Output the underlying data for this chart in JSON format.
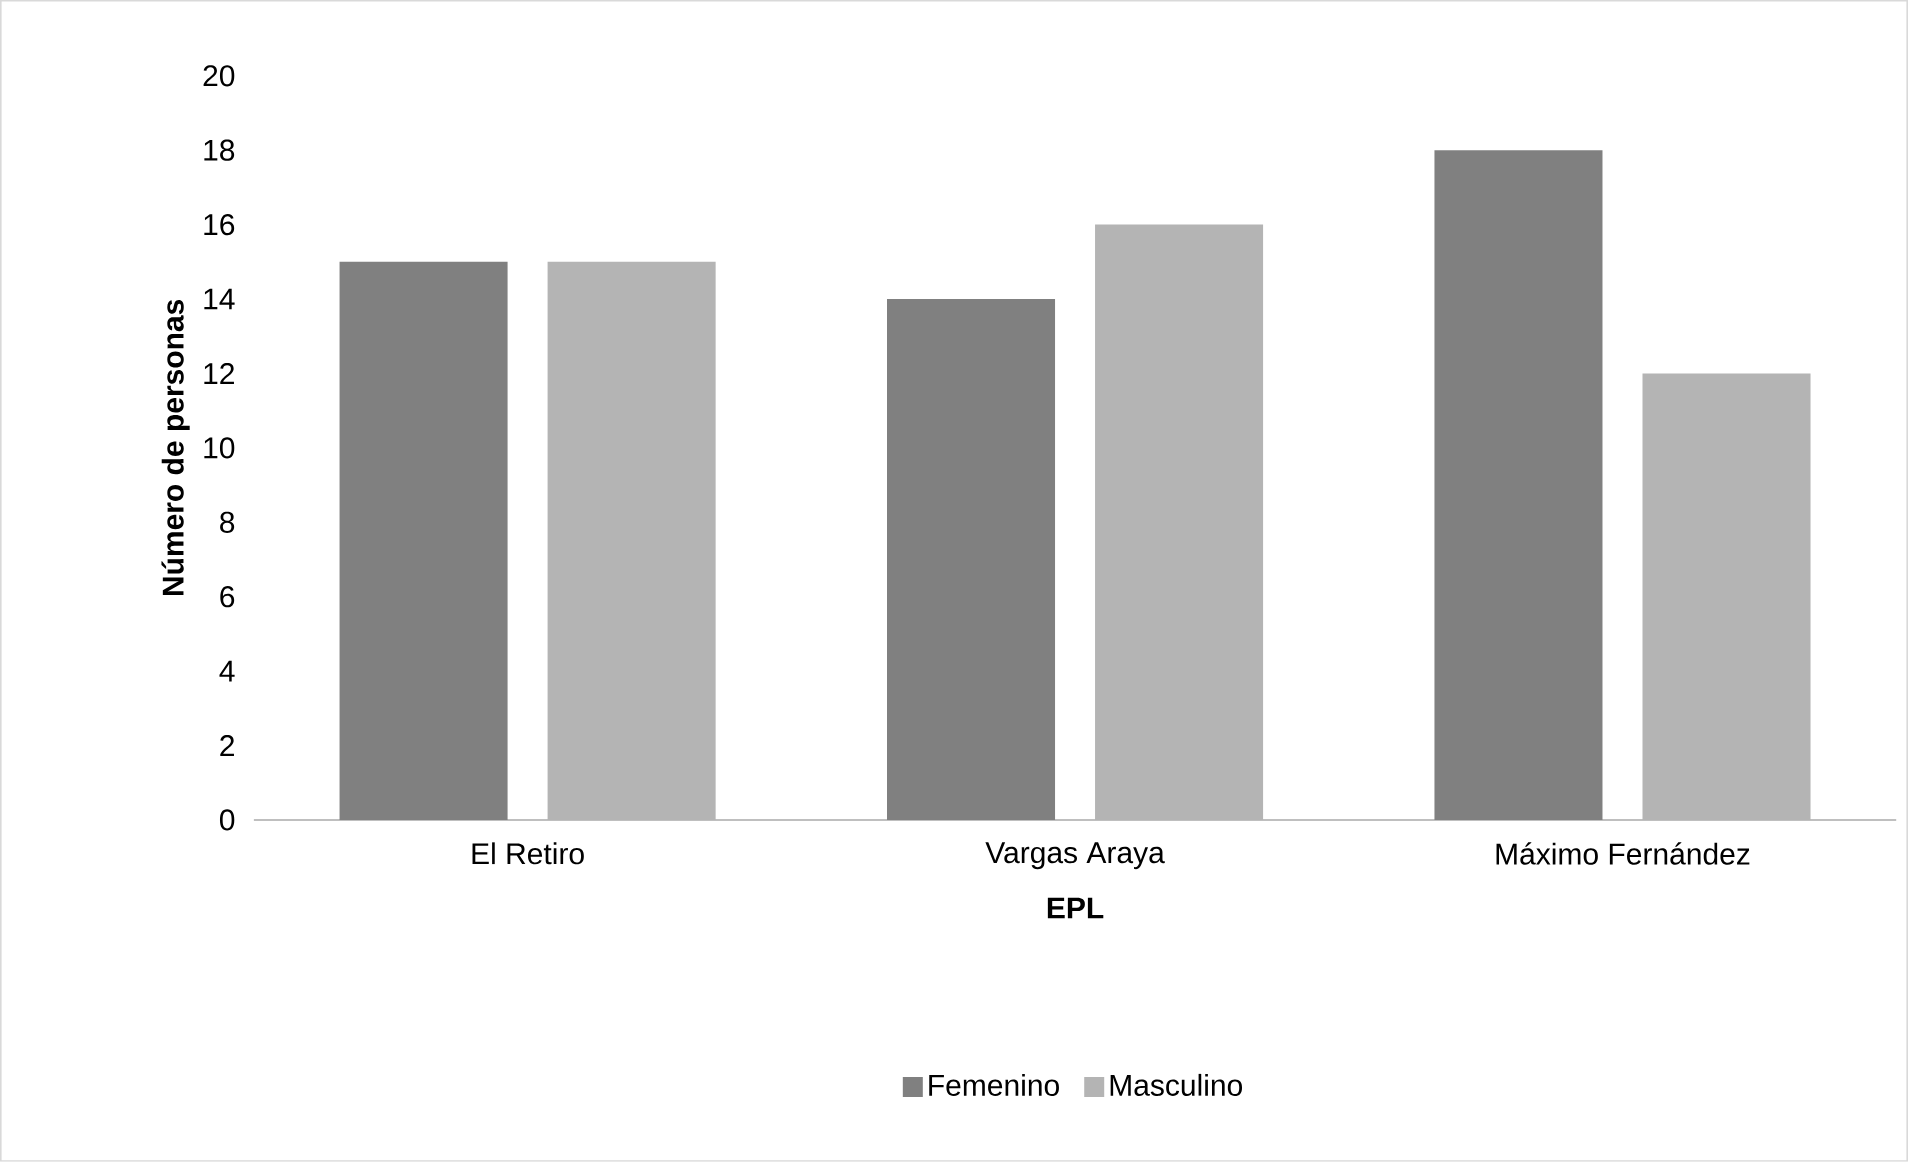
{
  "chart_data": {
    "type": "bar",
    "xlabel": "EPL",
    "ylabel": "Número de personas",
    "categories": [
      "El Retiro",
      "Vargas Araya",
      "Máximo Fernández"
    ],
    "series": [
      {
        "name": "Femenino",
        "color": "#808080",
        "values": [
          15,
          14,
          18
        ]
      },
      {
        "name": "Masculino",
        "color": "#b4b4b4",
        "values": [
          15,
          16,
          12
        ]
      }
    ],
    "ylim": [
      0,
      20
    ],
    "yticks": [
      0,
      2,
      4,
      6,
      8,
      10,
      12,
      14,
      16,
      18,
      20
    ],
    "legend": "bottom"
  }
}
